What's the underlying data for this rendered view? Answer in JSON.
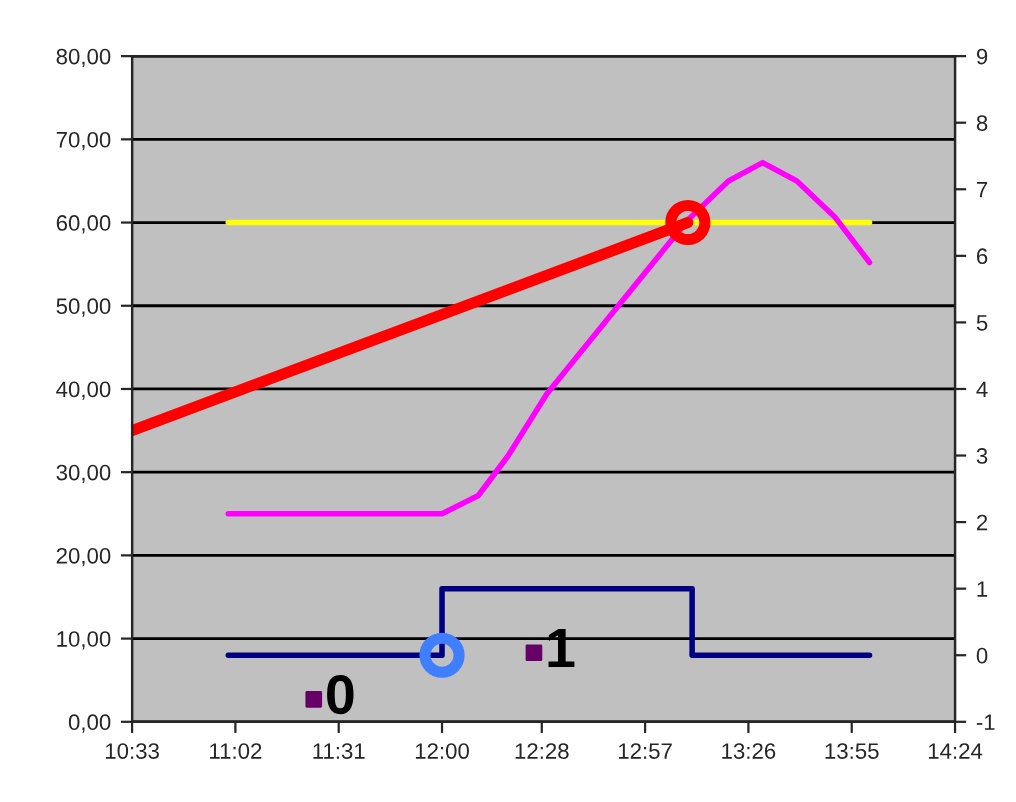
{
  "chart_data": {
    "type": "line",
    "xlim": [
      10.55,
      14.4
    ],
    "xticks": [
      {
        "value": 10.55,
        "label": "10:33"
      },
      {
        "value": 11.0333,
        "label": "11:02"
      },
      {
        "value": 11.5167,
        "label": "11:31"
      },
      {
        "value": 12.0,
        "label": "12:00"
      },
      {
        "value": 12.4667,
        "label": "12:28"
      },
      {
        "value": 12.95,
        "label": "12:57"
      },
      {
        "value": 13.4333,
        "label": "13:26"
      },
      {
        "value": 13.9167,
        "label": "13:55"
      },
      {
        "value": 14.4,
        "label": "14:24"
      }
    ],
    "annotations": [
      {
        "text": "0",
        "x": 11.4,
        "y": 2.7
      },
      {
        "text": "1",
        "x": 12.43,
        "y": 8.3
      }
    ],
    "ylim": [
      0,
      80
    ],
    "yticks": [
      {
        "value": 0,
        "label": "0,00"
      },
      {
        "value": 10,
        "label": "10,00"
      },
      {
        "value": 20,
        "label": "20,00"
      },
      {
        "value": 30,
        "label": "30,00"
      },
      {
        "value": 40,
        "label": "40,00"
      },
      {
        "value": 50,
        "label": "50,00"
      },
      {
        "value": 60,
        "label": "60,00"
      },
      {
        "value": 70,
        "label": "70,00"
      },
      {
        "value": 80,
        "label": "80,00"
      }
    ],
    "y2lim": [
      -1,
      9
    ],
    "y2ticks": [
      -1,
      0,
      1,
      2,
      3,
      4,
      5,
      6,
      7,
      8,
      9
    ],
    "grid": "y",
    "series": [
      {
        "color": "#ffff00",
        "x": [
          11.0,
          14.0
        ],
        "values": [
          60,
          60
        ]
      },
      {
        "color": "#ff00ff",
        "x": [
          11.0,
          12.0,
          12.17,
          12.31,
          12.49,
          13.15,
          13.34,
          13.5,
          13.66,
          13.84,
          14.0
        ],
        "values": [
          25,
          25,
          27.2,
          32,
          39.4,
          60.3,
          65,
          67.2,
          65,
          60.6,
          55.2
        ]
      },
      {
        "type": "step",
        "axis": "y2",
        "color": "#000080",
        "x": [
          11.0,
          12.0,
          13.17,
          14.0
        ],
        "values": [
          0,
          1,
          0,
          0
        ]
      },
      {
        "color": "#ff0000",
        "x": [
          10.55,
          13.15
        ],
        "values": [
          35,
          60
        ]
      },
      {
        "type": "scatter",
        "marker": "circle",
        "color": "#ff0000",
        "x": [
          13.15
        ],
        "values": [
          60
        ]
      },
      {
        "type": "scatter",
        "marker": "circle",
        "axis": "y2",
        "color": "#3f7fff",
        "x": [
          12.0
        ],
        "values": [
          0
        ]
      },
      {
        "type": "scatter",
        "marker": "square",
        "color": "#660066",
        "x": [
          11.4,
          12.43
        ],
        "values": [
          2.7,
          8.3
        ]
      }
    ]
  }
}
